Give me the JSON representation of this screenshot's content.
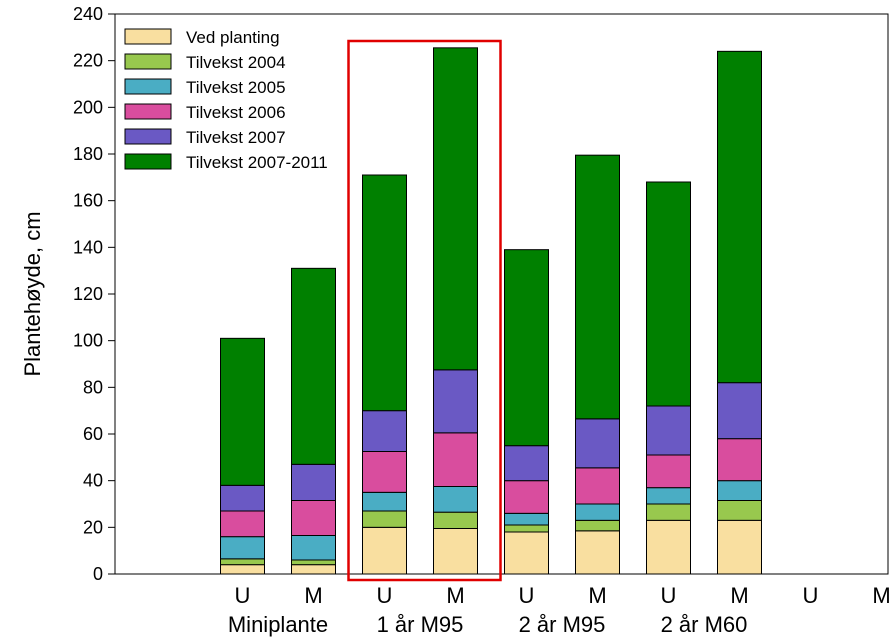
{
  "chart_data": {
    "type": "bar",
    "stacked": true,
    "ylabel": "Plantehøyde, cm",
    "ylim": [
      0,
      240
    ],
    "yticks": [
      0,
      20,
      40,
      60,
      80,
      100,
      120,
      140,
      160,
      180,
      200,
      220,
      240
    ],
    "grid": false,
    "legend_position": "top-left",
    "categories": [
      "U",
      "M",
      "U",
      "M",
      "U",
      "M",
      "U",
      "M",
      "U",
      "M"
    ],
    "groups": [
      "Miniplante",
      "1 år M95",
      "2 år M95",
      "2 år  M60"
    ],
    "series": [
      {
        "name": "Ved planting",
        "color": "#F9DFA0",
        "values": [
          4,
          4,
          20,
          19.5,
          18,
          18.5,
          23,
          23,
          null,
          null
        ]
      },
      {
        "name": "Tilvekst 2004",
        "color": "#98C84E",
        "values": [
          2.5,
          2,
          7,
          7,
          3,
          4.5,
          7,
          8.5,
          null,
          null
        ]
      },
      {
        "name": "Tilvekst 2005",
        "color": "#4AADC4",
        "values": [
          9.5,
          10.5,
          8,
          11,
          5,
          7,
          7,
          8.5,
          null,
          null
        ]
      },
      {
        "name": "Tilvekst 2006",
        "color": "#D94D9E",
        "values": [
          11,
          15,
          17.5,
          23,
          14,
          15.5,
          14,
          18,
          null,
          null
        ]
      },
      {
        "name": "Tilvekst 2007",
        "color": "#6A59C4",
        "values": [
          11,
          15.5,
          17.5,
          27,
          15,
          21,
          21,
          24,
          null,
          null
        ]
      },
      {
        "name": "Tilvekst 2007-2011",
        "color": "#008000",
        "values": [
          63,
          84,
          101,
          138,
          84,
          113,
          96,
          142,
          null,
          null
        ]
      }
    ],
    "highlight": {
      "group": "1 år M95",
      "color": "#E00000"
    }
  }
}
